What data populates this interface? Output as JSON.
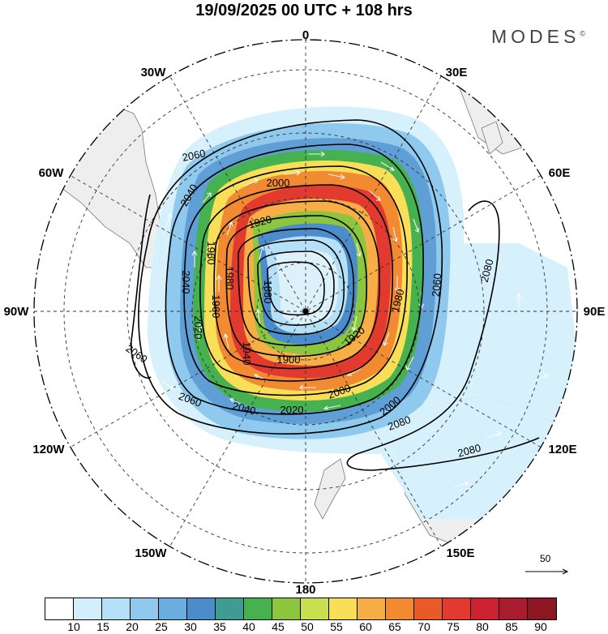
{
  "title": "19/09/2025  00 UTC  + 108 hrs",
  "brand": "MODES",
  "brand_mark": "©",
  "longitude_labels": {
    "l0": "0",
    "l30E": "30E",
    "l60E": "60E",
    "l90E": "90E",
    "l120E": "120E",
    "l150E": "150E",
    "l180": "180",
    "l150W": "150W",
    "l120W": "120W",
    "l90W": "90W",
    "l60W": "60W",
    "l30W": "30W"
  },
  "contour_labels": {
    "c1": "2060",
    "c2": "2000",
    "c3": "2040",
    "c4": "1920",
    "c5": "1960",
    "c6": "1980",
    "c7": "1880",
    "c8": "2040",
    "c9": "1960",
    "c10": "2020",
    "c11": "1940",
    "c12": "1900",
    "c13": "1920",
    "c14": "1980",
    "c15": "2060",
    "c16": "2000",
    "c17": "2060",
    "c18": "2040",
    "c19": "2020",
    "c20": "2000",
    "c21": "2080",
    "c22": "2080",
    "c23": "2080",
    "c24": "2060"
  },
  "wind_scale_label": "50",
  "colorbar": {
    "colors": [
      "#ffffff",
      "#d4effc",
      "#b4e1f7",
      "#8fcaee",
      "#6aaedf",
      "#4b8dcb",
      "#409b92",
      "#45b14f",
      "#8cc63f",
      "#c9df4f",
      "#f8df57",
      "#f6ae45",
      "#f28a32",
      "#ea5a29",
      "#e23a2e",
      "#cc2231",
      "#a81c2f",
      "#8c1722"
    ],
    "ticks": [
      "10",
      "15",
      "20",
      "25",
      "30",
      "35",
      "40",
      "45",
      "50",
      "55",
      "60",
      "65",
      "70",
      "75",
      "80",
      "85",
      "90"
    ]
  }
}
